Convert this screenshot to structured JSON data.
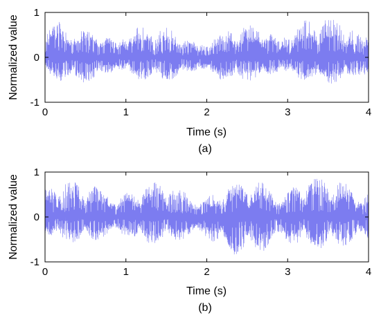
{
  "chart_data": [
    {
      "type": "line",
      "panel_label": "(a)",
      "xlabel": "Time (s)",
      "ylabel": "Normalized value",
      "xlim": [
        0,
        4
      ],
      "ylim": [
        -1,
        1
      ],
      "xticks": [
        0,
        1,
        2,
        3,
        4
      ],
      "yticks": [
        -1,
        0,
        1
      ],
      "grid": false,
      "legend": "none",
      "series": [
        {
          "color": "#7c7cf0",
          "description_of_shape": "dense noise-like oscillation centered at 0",
          "approx_envelope": [
            {
              "x": 0.0,
              "y_max": 1.0,
              "y_min": -0.55
            },
            {
              "x": 0.5,
              "y_max": 0.6,
              "y_min": -0.6
            },
            {
              "x": 1.0,
              "y_max": 0.8,
              "y_min": -0.55
            },
            {
              "x": 1.5,
              "y_max": 0.7,
              "y_min": -0.55
            },
            {
              "x": 2.0,
              "y_max": 0.55,
              "y_min": -0.55
            },
            {
              "x": 2.6,
              "y_max": 0.8,
              "y_min": -0.6
            },
            {
              "x": 3.5,
              "y_max": 0.95,
              "y_min": -0.6
            },
            {
              "x": 3.95,
              "y_max": 0.95,
              "y_min": -0.8
            }
          ]
        }
      ]
    },
    {
      "type": "line",
      "panel_label": "(b)",
      "xlabel": "Time (s)",
      "ylabel": "Normalized value",
      "xlim": [
        0,
        4
      ],
      "ylim": [
        -1,
        1
      ],
      "xticks": [
        0,
        1,
        2,
        3,
        4
      ],
      "yticks": [
        -1,
        0,
        1
      ],
      "grid": false,
      "legend": "none",
      "series": [
        {
          "color": "#7c7cf0",
          "description_of_shape": "dense noise-like oscillation centered at 0 with amplitude bursts",
          "approx_envelope": [
            {
              "x": 0.0,
              "y_max": 0.95,
              "y_min": -0.6
            },
            {
              "x": 0.5,
              "y_max": 0.8,
              "y_min": -0.6
            },
            {
              "x": 1.0,
              "y_max": 0.75,
              "y_min": -0.65
            },
            {
              "x": 1.5,
              "y_max": 0.8,
              "y_min": -0.6
            },
            {
              "x": 2.0,
              "y_max": 0.65,
              "y_min": -0.7
            },
            {
              "x": 2.6,
              "y_max": 0.9,
              "y_min": -0.95
            },
            {
              "x": 3.5,
              "y_max": 0.9,
              "y_min": -0.7
            },
            {
              "x": 3.95,
              "y_max": 0.9,
              "y_min": -0.85
            }
          ]
        }
      ]
    }
  ]
}
